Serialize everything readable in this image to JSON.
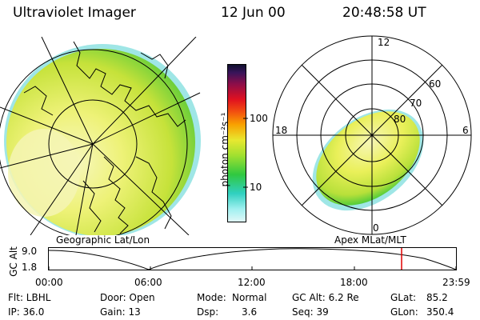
{
  "header": {
    "title": "Ultraviolet Imager",
    "date": "12 Jun 00",
    "time": "20:48:58 UT"
  },
  "colorbar": {
    "label": "photon cm⁻²s⁻¹",
    "ticks": [
      "100",
      "10"
    ]
  },
  "left_panel": {
    "caption": "Geographic Lat/Lon"
  },
  "right_panel": {
    "caption": "Apex MLat/MLT",
    "lat_labels": [
      "60",
      "70",
      "80"
    ],
    "mlt_labels": {
      "top": "12",
      "left": "18",
      "right": "6",
      "bottom": "0"
    }
  },
  "altitude_strip": {
    "ylabel": "GC Alt",
    "y_ticks": [
      "9.0",
      "1.8"
    ],
    "x_ticks": [
      "00:00",
      "06:00",
      "12:00",
      "18:00",
      "23:59"
    ]
  },
  "info": {
    "flt": "Flt: LBHL",
    "ip": "IP: 36.0",
    "door": "Door: Open",
    "gain": "Gain: 13",
    "mode_label": "Mode:",
    "mode_value": "Normal",
    "dsp_label": "Dsp:",
    "dsp_value": "3.6",
    "gcalt": "GC Alt: 6.2 Re",
    "seq": "Seq: 39",
    "glat_label": "GLat:",
    "glat_value": "85.2",
    "glon_label": "GLon:",
    "glon_value": "350.4"
  },
  "colors": {
    "auroral_green": "#2ec83a",
    "auroral_yellow": "#e8f04a",
    "bright_yellow": "#f6f6b0",
    "marker_red": "#e00000"
  }
}
